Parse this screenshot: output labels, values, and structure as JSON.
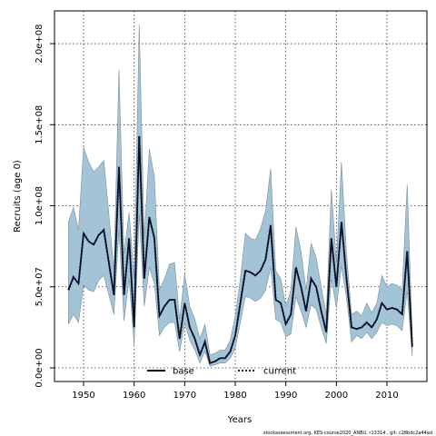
{
  "chart_data": {
    "type": "line",
    "x_label": "Years",
    "y_label": "Recruits (age 0)",
    "footer": "stockassessment.org, KES-course2020_ANBU, r13314 , git: c28bdc2a44ad",
    "x": [
      1947,
      1948,
      1949,
      1950,
      1951,
      1952,
      1953,
      1954,
      1955,
      1956,
      1957,
      1958,
      1959,
      1960,
      1961,
      1962,
      1963,
      1964,
      1965,
      1966,
      1967,
      1968,
      1969,
      1970,
      1971,
      1972,
      1973,
      1974,
      1975,
      1976,
      1977,
      1978,
      1979,
      1980,
      1981,
      1982,
      1983,
      1984,
      1985,
      1986,
      1987,
      1988,
      1989,
      1990,
      1991,
      1992,
      1993,
      1994,
      1995,
      1996,
      1997,
      1998,
      1999,
      2000,
      2001,
      2002,
      2003,
      2004,
      2005,
      2006,
      2007,
      2008,
      2009,
      2010,
      2011,
      2012,
      2013,
      2014,
      2015
    ],
    "series": [
      {
        "name": "base",
        "color": "#000000",
        "dash": "solid",
        "values": [
          48000000.0,
          56000000.0,
          52000000.0,
          83000000.0,
          78000000.0,
          76000000.0,
          82000000.0,
          85000000.0,
          65000000.0,
          45000000.0,
          124000000.0,
          45000000.0,
          80000000.0,
          25000000.0,
          143000000.0,
          55000000.0,
          93000000.0,
          80000000.0,
          32000000.0,
          38000000.0,
          42000000.0,
          42000000.0,
          18000000.0,
          40000000.0,
          25000000.0,
          18000000.0,
          8000000.0,
          16000000.0,
          3000000.0,
          4000000.0,
          6000000.0,
          6000000.0,
          10000000.0,
          20000000.0,
          40000000.0,
          60000000.0,
          59000000.0,
          57000000.0,
          60000000.0,
          67000000.0,
          88000000.0,
          42000000.0,
          40000000.0,
          27000000.0,
          33000000.0,
          62000000.0,
          50000000.0,
          35000000.0,
          55000000.0,
          50000000.0,
          35000000.0,
          22000000.0,
          80000000.0,
          50000000.0,
          90000000.0,
          55000000.0,
          25000000.0,
          24000000.0,
          25000000.0,
          28000000.0,
          25000000.0,
          30000000.0,
          40000000.0,
          36000000.0,
          37000000.0,
          36000000.0,
          33000000.0,
          72000000.0,
          13000000.0
        ]
      },
      {
        "name": "current",
        "color": "#0d1a4a",
        "dash": "dotted",
        "values": [
          48000000.0,
          56000000.0,
          52000000.0,
          83000000.0,
          78000000.0,
          76000000.0,
          82000000.0,
          85000000.0,
          65000000.0,
          45000000.0,
          124000000.0,
          45000000.0,
          80000000.0,
          25000000.0,
          143000000.0,
          55000000.0,
          93000000.0,
          80000000.0,
          32000000.0,
          38000000.0,
          42000000.0,
          42000000.0,
          18000000.0,
          40000000.0,
          25000000.0,
          18000000.0,
          8000000.0,
          16000000.0,
          3000000.0,
          4000000.0,
          6000000.0,
          6000000.0,
          10000000.0,
          20000000.0,
          40000000.0,
          60000000.0,
          59000000.0,
          57000000.0,
          60000000.0,
          67000000.0,
          88000000.0,
          42000000.0,
          40000000.0,
          27000000.0,
          33000000.0,
          62000000.0,
          50000000.0,
          35000000.0,
          55000000.0,
          50000000.0,
          35000000.0,
          22000000.0,
          80000000.0,
          50000000.0,
          90000000.0,
          55000000.0,
          25000000.0,
          24000000.0,
          25000000.0,
          28000000.0,
          25000000.0,
          30000000.0,
          40000000.0,
          36000000.0,
          37000000.0,
          36000000.0,
          33000000.0,
          72000000.0,
          13000000.0
        ]
      }
    ],
    "band": {
      "color": "#a3c4d6",
      "upper": [
        90000000.0,
        99000000.0,
        85000000.0,
        136000000.0,
        127000000.0,
        121000000.0,
        124000000.0,
        128000000.0,
        95000000.0,
        60000000.0,
        184000000.0,
        70000000.0,
        96000000.0,
        55000000.0,
        212000000.0,
        80000000.0,
        135000000.0,
        118000000.0,
        48000000.0,
        55000000.0,
        64000000.0,
        65000000.0,
        30000000.0,
        58000000.0,
        38000000.0,
        30000000.0,
        18000000.0,
        27000000.0,
        8000000.0,
        9000000.0,
        11000000.0,
        11000000.0,
        17000000.0,
        32000000.0,
        55000000.0,
        83000000.0,
        80000000.0,
        79000000.0,
        86000000.0,
        97000000.0,
        123000000.0,
        60000000.0,
        55000000.0,
        38000000.0,
        48000000.0,
        87000000.0,
        72000000.0,
        48000000.0,
        77000000.0,
        68000000.0,
        50000000.0,
        33000000.0,
        110000000.0,
        65000000.0,
        127000000.0,
        70000000.0,
        33000000.0,
        35000000.0,
        32000000.0,
        40000000.0,
        34000000.0,
        40000000.0,
        57000000.0,
        50000000.0,
        52000000.0,
        51000000.0,
        48000000.0,
        113000000.0,
        20000000.0
      ],
      "lower": [
        27000000.0,
        33000000.0,
        28000000.0,
        51000000.0,
        48000000.0,
        47000000.0,
        54000000.0,
        57000000.0,
        45000000.0,
        33000000.0,
        85000000.0,
        29000000.0,
        55000000.0,
        14000000.0,
        95000000.0,
        38000000.0,
        62000000.0,
        52000000.0,
        20000000.0,
        25000000.0,
        28000000.0,
        28000000.0,
        10000000.0,
        28000000.0,
        17000000.0,
        11000000.0,
        3000000.0,
        10000000.0,
        1000000.0,
        2000000.0,
        3000000.0,
        3000000.0,
        6000000.0,
        12000000.0,
        28000000.0,
        44000000.0,
        43000000.0,
        41000000.0,
        43000000.0,
        48000000.0,
        62000000.0,
        30000000.0,
        28000000.0,
        19000000.0,
        21000000.0,
        44000000.0,
        35000000.0,
        25000000.0,
        39000000.0,
        36000000.0,
        25000000.0,
        15000000.0,
        55000000.0,
        37000000.0,
        63000000.0,
        43000000.0,
        16000000.0,
        20000000.0,
        18000000.0,
        22000000.0,
        18000000.0,
        22000000.0,
        28000000.0,
        26000000.0,
        27000000.0,
        26000000.0,
        23000000.0,
        47000000.0,
        7000000.0
      ]
    },
    "xlim": [
      1944.25,
      2017.9
    ],
    "ylim": [
      -8400000.0,
      220200000.0
    ],
    "xticks": [
      1950,
      1960,
      1970,
      1980,
      1990,
      2000,
      2010
    ],
    "yticks": [
      {
        "value": 0,
        "label": "0.0e+00"
      },
      {
        "value": 50000000,
        "label": "5.0e+07"
      },
      {
        "value": 100000000,
        "label": "1.0e+08"
      },
      {
        "value": 150000000,
        "label": "1.5e+08"
      },
      {
        "value": 200000000,
        "label": "2.0e+08"
      }
    ],
    "grid": true,
    "legend": "bottom"
  }
}
